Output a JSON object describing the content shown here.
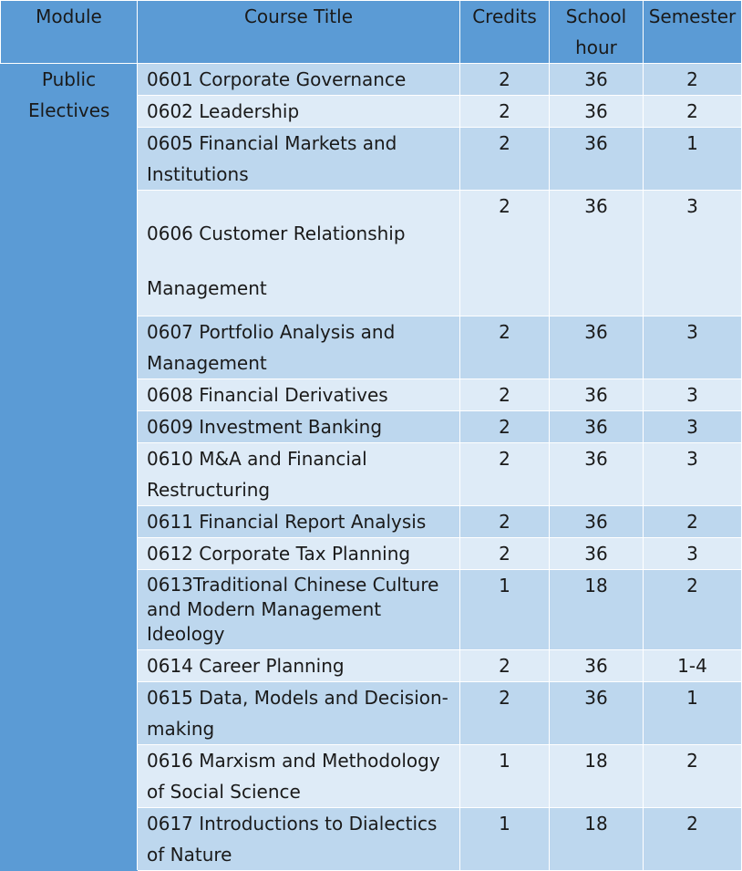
{
  "header": {
    "module": "Module",
    "course_title": "Course Title",
    "credits": "Credits",
    "school_hour": "School hour",
    "semester": "Semester"
  },
  "module_label": "Public Electives",
  "rows": [
    {
      "title": "0601 Corporate Governance",
      "credits": "2",
      "hours": "36",
      "semester": "2"
    },
    {
      "title": "0602 Leadership",
      "credits": "2",
      "hours": "36",
      "semester": "2"
    },
    {
      "title": "0605 Financial Markets and Institutions",
      "credits": "2",
      "hours": "36",
      "semester": "1"
    },
    {
      "title": "0606 Customer Relationship Management",
      "credits": "2",
      "hours": "36",
      "semester": "3"
    },
    {
      "title": "0607 Portfolio Analysis and Management",
      "credits": "2",
      "hours": "36",
      "semester": "3"
    },
    {
      "title": "0608 Financial Derivatives",
      "credits": "2",
      "hours": "36",
      "semester": "3"
    },
    {
      "title": "0609 Investment Banking",
      "credits": "2",
      "hours": "36",
      "semester": "3"
    },
    {
      "title": "0610 M&A and Financial Restructuring",
      "credits": "2",
      "hours": "36",
      "semester": "3"
    },
    {
      "title": "0611 Financial Report Analysis",
      "credits": "2",
      "hours": "36",
      "semester": "2"
    },
    {
      "title": "0612 Corporate Tax Planning",
      "credits": "2",
      "hours": "36",
      "semester": "3"
    },
    {
      "title": "0613Traditional Chinese Culture and Modern Management Ideology",
      "credits": "1",
      "hours": "18",
      "semester": "2"
    },
    {
      "title": "0614 Career Planning",
      "credits": "2",
      "hours": "36",
      "semester": "1-4"
    },
    {
      "title": "0615 Data, Models and Decision-making",
      "credits": "2",
      "hours": "36",
      "semester": "1"
    },
    {
      "title": "0616 Marxism and Methodology of Social Science",
      "credits": "1",
      "hours": "18",
      "semester": "2"
    },
    {
      "title": "0617 Introductions to Dialectics of Nature",
      "credits": "1",
      "hours": "18",
      "semester": "2"
    }
  ]
}
